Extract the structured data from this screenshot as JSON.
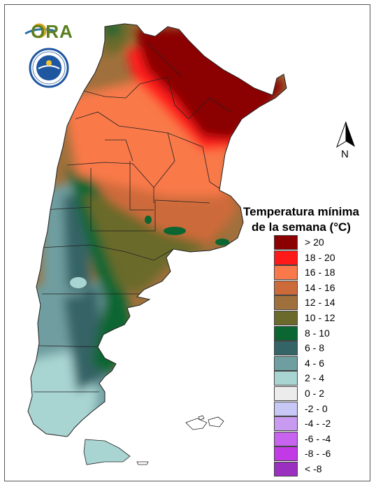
{
  "logos": {
    "ora_text": "ORA",
    "smn_ring_text": "SERVICIO METEOROLÓGICO NACIONAL",
    "smn_country": "ARGENTINA"
  },
  "compass": {
    "label": "N",
    "icon": "north-arrow-icon"
  },
  "legend": {
    "title_line1": "Temperatura mínima",
    "title_line2": "de la semana (°C)",
    "items": [
      {
        "label": "> 20",
        "color": "#8b0000"
      },
      {
        "label": "18 - 20",
        "color": "#ff1a1a"
      },
      {
        "label": "16 - 18",
        "color": "#f9794a"
      },
      {
        "label": "14 - 16",
        "color": "#cd6a3a"
      },
      {
        "label": "12 - 14",
        "color": "#a0703c"
      },
      {
        "label": "10 - 12",
        "color": "#6b6a2c"
      },
      {
        "label": "8 - 10",
        "color": "#0b6632"
      },
      {
        "label": "6 - 8",
        "color": "#346466"
      },
      {
        "label": "4 - 6",
        "color": "#6f9ea0"
      },
      {
        "label": "2 - 4",
        "color": "#a8d4d2"
      },
      {
        "label": "0 - 2",
        "color": "#ececec"
      },
      {
        "label": "-2 - 0",
        "color": "#c8c8f6"
      },
      {
        "label": "-4 - -2",
        "color": "#c89af0"
      },
      {
        "label": "-6 - -4",
        "color": "#c863ef"
      },
      {
        "label": "-8 - -6",
        "color": "#c23ae6"
      },
      {
        "label": "< -8",
        "color": "#9b2fbf"
      }
    ]
  }
}
